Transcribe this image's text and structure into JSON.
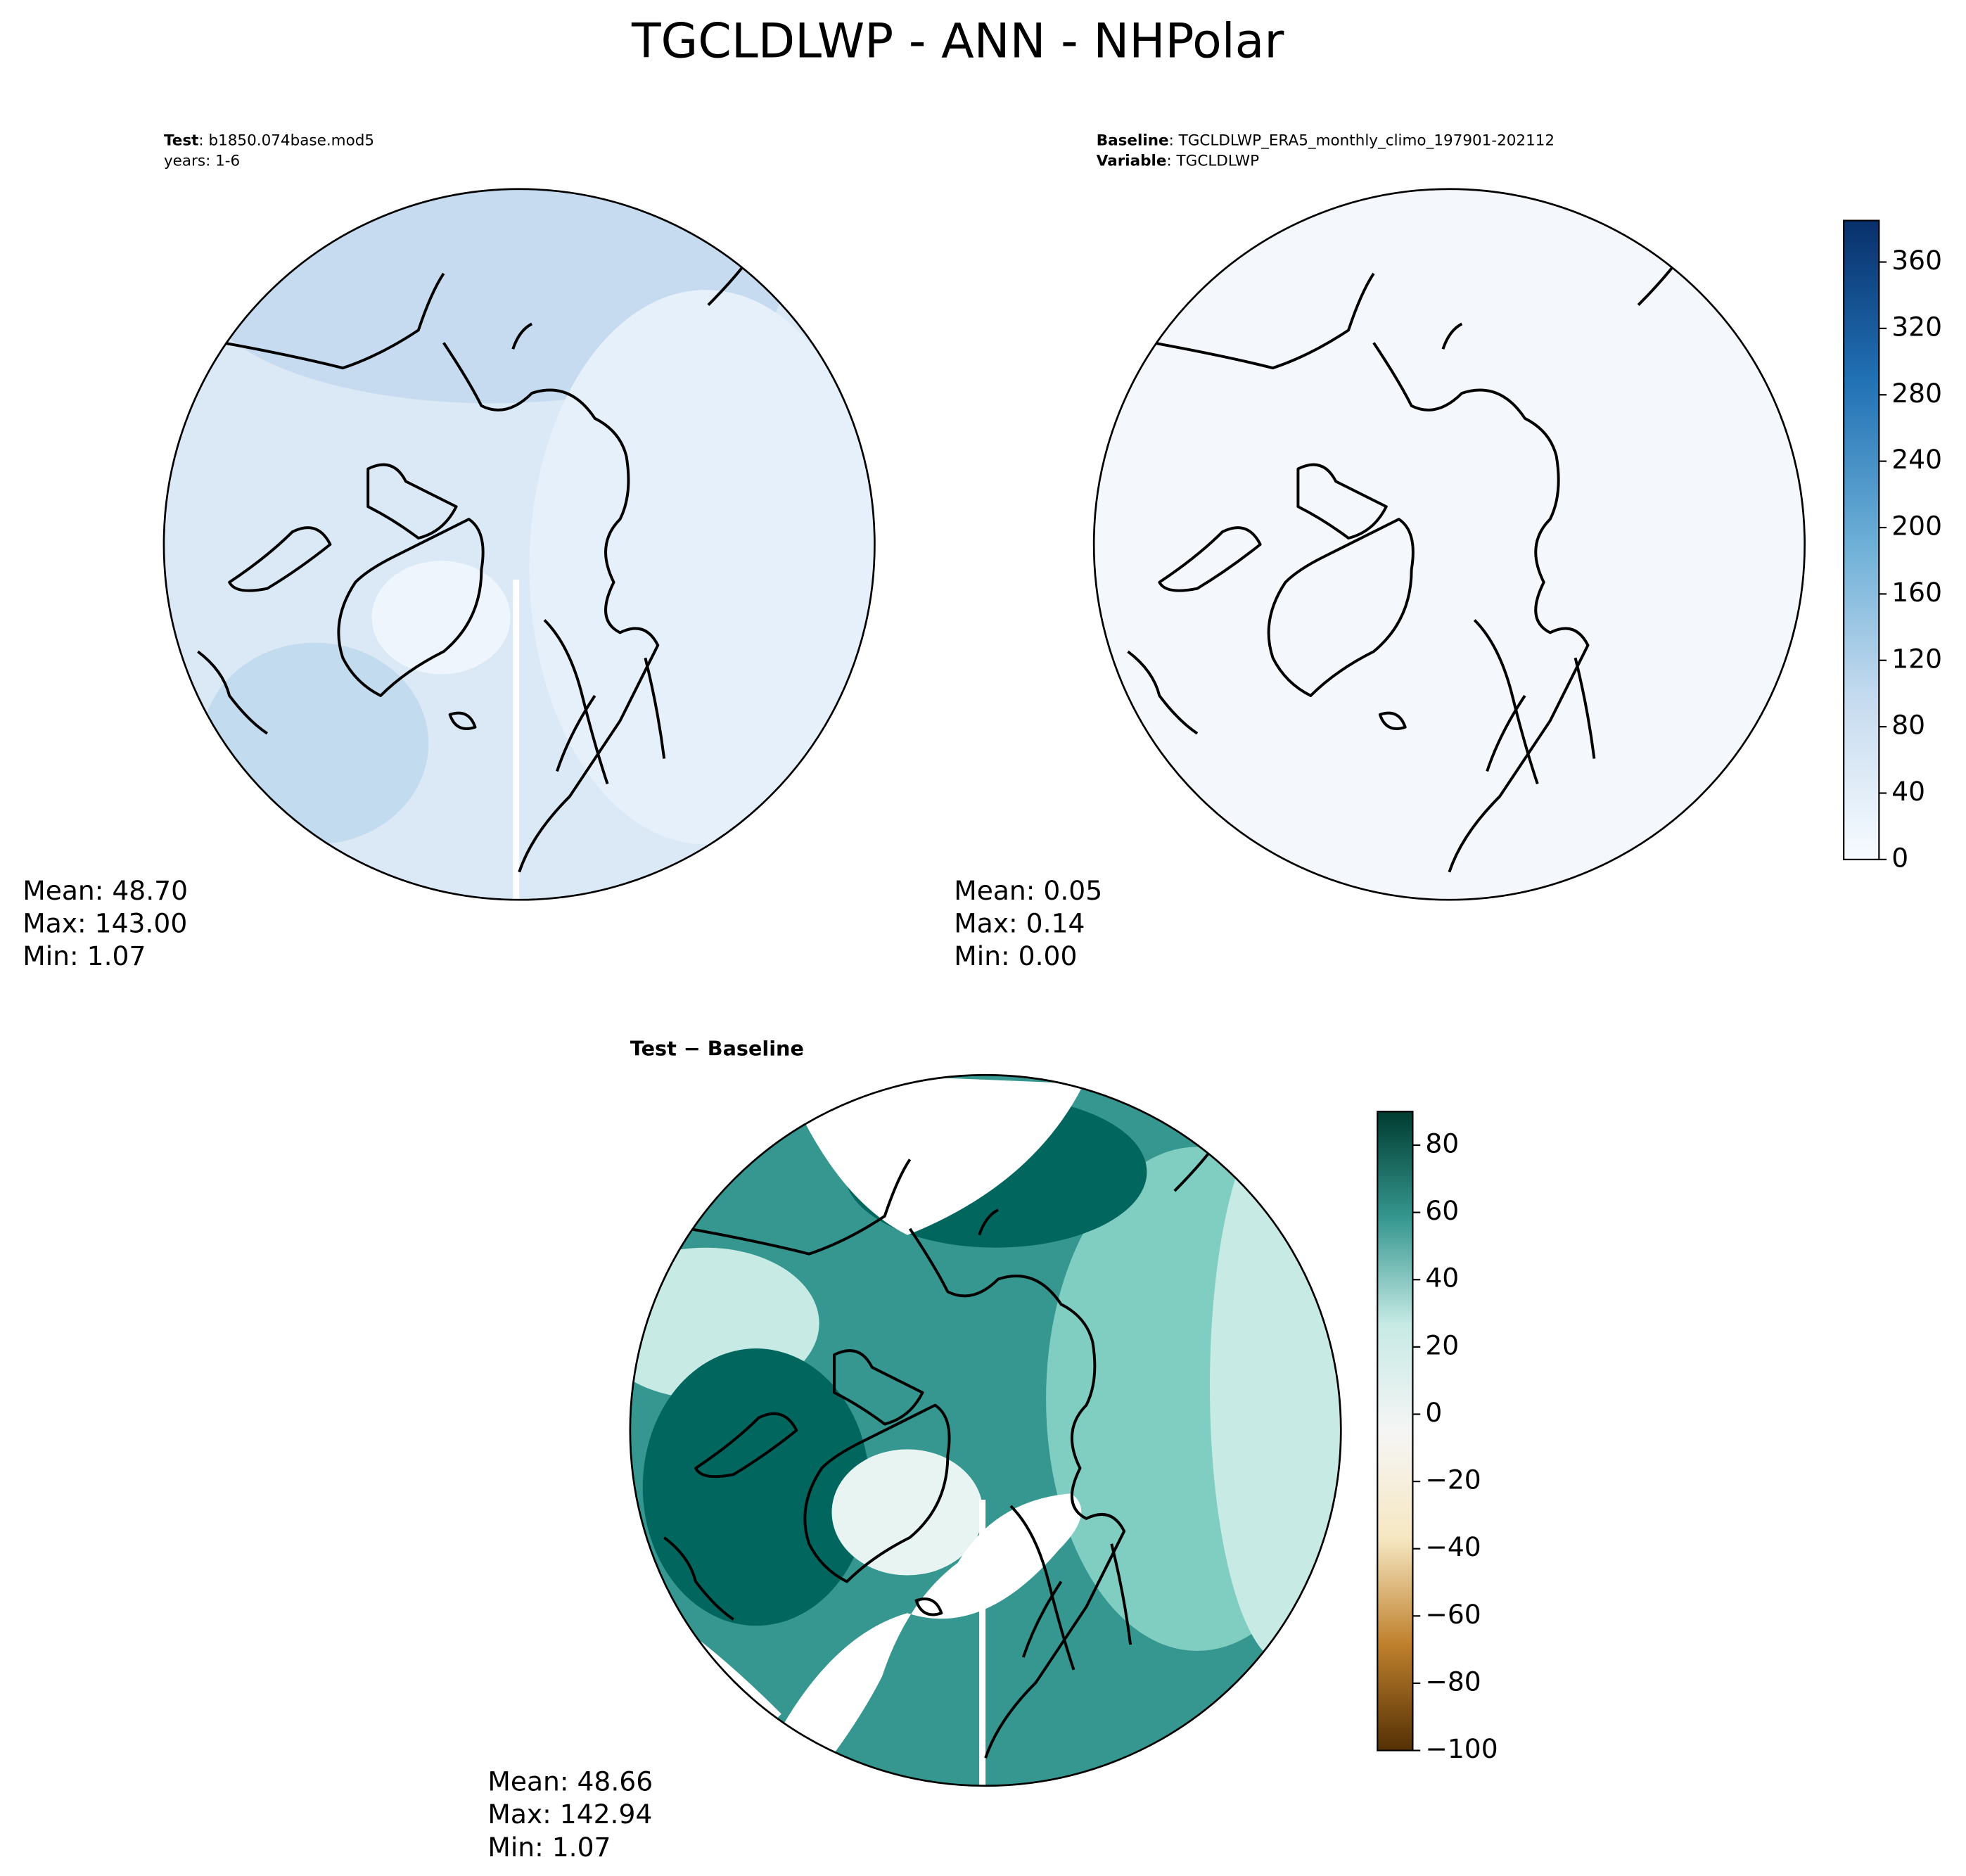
{
  "title": "TGCLDLWP - ANN - NHPolar",
  "panels": [
    {
      "header": [
        {
          "bold": "Test",
          "rest": ": b1850.074base.mod5"
        },
        {
          "rest": "years: 1-6"
        }
      ],
      "stats": [
        "Mean: 48.70",
        "Max: 143.00",
        "Min:  1.07"
      ]
    },
    {
      "header": [
        {
          "bold": "Baseline",
          "rest": ": TGCLDLWP_ERA5_monthly_climo_197901-202112"
        },
        {
          "bold": "Variable",
          "rest": ": TGCLDLWP"
        }
      ],
      "stats": [
        "Mean:  0.05",
        "Max:  0.14",
        "Min:  0.00"
      ]
    },
    {
      "header": [
        {
          "bold": "Test − Baseline"
        }
      ],
      "stats": [
        "Mean: 48.66",
        "Max: 142.94",
        "Min:  1.07"
      ]
    }
  ],
  "colorbars": [
    {
      "ylim": [
        0,
        385
      ],
      "yticks": [
        0,
        40,
        80,
        120,
        160,
        200,
        240,
        280,
        320,
        360
      ],
      "colors": [
        "#f7fbff",
        "#c6dbef",
        "#6baed6",
        "#2171b5",
        "#08306b"
      ]
    },
    {
      "ylim": [
        -100,
        90
      ],
      "yticks": [
        {
          "value": -100,
          "label": "−100"
        },
        {
          "value": -80,
          "label": "−80"
        },
        {
          "value": -60,
          "label": "−60"
        },
        {
          "value": -40,
          "label": "−40"
        },
        {
          "value": -20,
          "label": "−20"
        },
        0,
        20,
        40,
        60,
        80
      ],
      "colors": [
        "#543005",
        "#bf812d",
        "#f6e8c3",
        "#f5f5f5",
        "#c7eae5",
        "#35978f",
        "#003c30"
      ]
    }
  ]
}
